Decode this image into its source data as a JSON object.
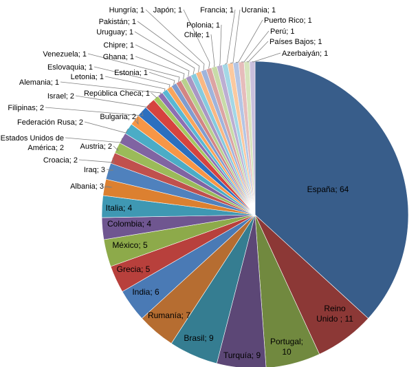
{
  "chart_data": {
    "type": "pie",
    "title": "",
    "separator": "; ",
    "slices": [
      {
        "label": "España",
        "value": 64,
        "color": "#385d8a"
      },
      {
        "label": "Reino Unido",
        "value": 11,
        "color": "#8c3836"
      },
      {
        "label": "Portugal",
        "value": 10,
        "color": "#71893f"
      },
      {
        "label": "Turquía",
        "value": 9,
        "color": "#5c4776"
      },
      {
        "label": "Brasil",
        "value": 9,
        "color": "#357d91"
      },
      {
        "label": "Rumanía",
        "value": 7,
        "color": "#b66d31"
      },
      {
        "label": "India",
        "value": 6,
        "color": "#4a7ab5"
      },
      {
        "label": "Grecia",
        "value": 5,
        "color": "#b8403c"
      },
      {
        "label": "México",
        "value": 5,
        "color": "#8daa4a"
      },
      {
        "label": "Colombia",
        "value": 4,
        "color": "#6f5690"
      },
      {
        "label": "Italia",
        "value": 4,
        "color": "#3f98b3"
      },
      {
        "label": "Albania",
        "value": 3,
        "color": "#dc8030"
      },
      {
        "label": "Iraq",
        "value": 3,
        "color": "#4f81bd"
      },
      {
        "label": "Croacia",
        "value": 2,
        "color": "#c0504d"
      },
      {
        "label": "Austria",
        "value": 2,
        "color": "#9bbb59"
      },
      {
        "label": "Estados Unidos de América",
        "value": 2,
        "color": "#8064a2"
      },
      {
        "label": "Federación Rusa",
        "value": 2,
        "color": "#4bacc6"
      },
      {
        "label": "Bulgaria",
        "value": 2,
        "color": "#f79646"
      },
      {
        "label": "Filipinas",
        "value": 2,
        "color": "#2c6fbf"
      },
      {
        "label": "Israel",
        "value": 2,
        "color": "#d6433f"
      },
      {
        "label": "República Checa",
        "value": 1,
        "color": "#a5c860"
      },
      {
        "label": "Alemania",
        "value": 1,
        "color": "#8d6fb3"
      },
      {
        "label": "Letonia",
        "value": 1,
        "color": "#59b8d4"
      },
      {
        "label": "Eslovaquia",
        "value": 1,
        "color": "#f9a55b"
      },
      {
        "label": "Estonia",
        "value": 1,
        "color": "#7f9ccf"
      },
      {
        "label": "Venezuela",
        "value": 1,
        "color": "#d38584"
      },
      {
        "label": "Ghana",
        "value": 1,
        "color": "#b9d08d"
      },
      {
        "label": "Chipre",
        "value": 1,
        "color": "#a997c4"
      },
      {
        "label": "Uruguay",
        "value": 1,
        "color": "#86cbdf"
      },
      {
        "label": "Pakistán",
        "value": 1,
        "color": "#f9b884"
      },
      {
        "label": "Hungría",
        "value": 1,
        "color": "#9fb4dc"
      },
      {
        "label": "Japón",
        "value": 1,
        "color": "#dca4a3"
      },
      {
        "label": "Chile",
        "value": 1,
        "color": "#c8dba8"
      },
      {
        "label": "Polonia",
        "value": 1,
        "color": "#bcaed2"
      },
      {
        "label": "Francia",
        "value": 1,
        "color": "#a3d7e6"
      },
      {
        "label": "Ucrania",
        "value": 1,
        "color": "#fbc9a0"
      },
      {
        "label": "Puerto Rico",
        "value": 1,
        "color": "#b4c5e5"
      },
      {
        "label": "Perú",
        "value": 1,
        "color": "#e6bcbb"
      },
      {
        "label": "Países Bajos",
        "value": 1,
        "color": "#d6e4bd"
      },
      {
        "label": "Azerbaiyán",
        "value": 1,
        "color": "#c9bfdc"
      }
    ]
  }
}
